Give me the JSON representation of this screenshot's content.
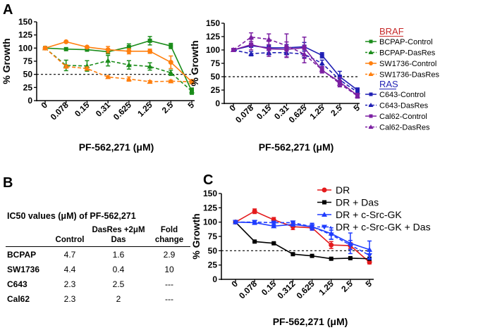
{
  "panels": {
    "A": "A",
    "B": "B",
    "C": "C"
  },
  "chart_data": [
    {
      "id": "A-left",
      "type": "line",
      "ylabel": "% Growth",
      "xlabel": "PF-562,271 (μM)",
      "categories": [
        "0",
        "0.078",
        "0.15",
        "0.31",
        "0.625",
        "1.25",
        "2.5",
        "5"
      ],
      "yticks": [
        0,
        25,
        50,
        75,
        100,
        125,
        150
      ],
      "ylim": [
        0,
        150
      ],
      "reference_line": 50,
      "series": [
        {
          "name": "BCPAP-Control",
          "color": "#1a8c1a",
          "dash": false,
          "marker": "square",
          "values": [
            100,
            98,
            97,
            93,
            102,
            114,
            104,
            18
          ],
          "err": [
            0,
            0,
            0,
            4,
            6,
            8,
            5,
            5
          ]
        },
        {
          "name": "BCPAP-DasRes",
          "color": "#1a8c1a",
          "dash": true,
          "marker": "triangle",
          "values": [
            100,
            67,
            66,
            76,
            68,
            65,
            53,
            18
          ],
          "err": [
            0,
            10,
            10,
            10,
            8,
            7,
            5,
            6
          ]
        },
        {
          "name": "SW1736-Control",
          "color": "#ff7f0e",
          "dash": false,
          "marker": "circle",
          "values": [
            100,
            112,
            102,
            97,
            94,
            94,
            73,
            36
          ],
          "err": [
            0,
            0,
            0,
            6,
            5,
            4,
            12,
            4
          ]
        },
        {
          "name": "SW1736-DasRes",
          "color": "#ff7f0e",
          "dash": true,
          "marker": "triangle",
          "values": [
            100,
            65,
            61,
            45,
            41,
            36,
            37,
            36
          ],
          "err": [
            0,
            3,
            3,
            2,
            4,
            2,
            2,
            2
          ]
        }
      ]
    },
    {
      "id": "A-right",
      "type": "line",
      "ylabel": "% Growth",
      "xlabel": "PF-562,271 (μM)",
      "categories": [
        "0",
        "0.078",
        "0.15",
        "0.31",
        "0.625",
        "1.25",
        "2.5",
        "5"
      ],
      "yticks": [
        0,
        25,
        50,
        75,
        100,
        125,
        150
      ],
      "ylim": [
        0,
        150
      ],
      "reference_line": 50,
      "series": [
        {
          "name": "C643-Control",
          "color": "#1f1fb4",
          "dash": false,
          "marker": "square",
          "values": [
            100,
            108,
            104,
            104,
            106,
            90,
            50,
            25
          ],
          "err": [
            0,
            3,
            5,
            6,
            8,
            5,
            10,
            4
          ]
        },
        {
          "name": "C643-DasRes",
          "color": "#1f1fb4",
          "dash": true,
          "marker": "triangle",
          "values": [
            100,
            93,
            95,
            95,
            92,
            75,
            44,
            21
          ],
          "err": [
            0,
            4,
            4,
            4,
            6,
            6,
            7,
            4
          ]
        },
        {
          "name": "Cal62-Control",
          "color": "#7b1fa2",
          "dash": false,
          "marker": "square",
          "values": [
            100,
            110,
            102,
            101,
            104,
            62,
            40,
            15
          ],
          "err": [
            0,
            10,
            14,
            14,
            20,
            5,
            8,
            4
          ]
        },
        {
          "name": "Cal62-DasRes",
          "color": "#7b1fa2",
          "dash": true,
          "marker": "triangle",
          "values": [
            100,
            124,
            120,
            108,
            92,
            63,
            37,
            14
          ],
          "err": [
            0,
            8,
            10,
            22,
            16,
            6,
            6,
            4
          ]
        }
      ]
    },
    {
      "id": "C",
      "type": "line",
      "ylabel": "% Growth",
      "xlabel": "PF-562,271 (μM)",
      "categories": [
        "0",
        "0.078",
        "0.15",
        "0.312",
        "0.625",
        "1.25",
        "2.5",
        "5"
      ],
      "yticks": [
        0,
        25,
        50,
        75,
        100,
        125,
        150
      ],
      "ylim": [
        0,
        150
      ],
      "reference_line": 50,
      "series": [
        {
          "name": "DR",
          "color": "#e41a1c",
          "dash": false,
          "marker": "circle",
          "values": [
            100,
            119,
            104,
            92,
            90,
            60,
            59,
            30
          ],
          "err": [
            0,
            4,
            4,
            5,
            4,
            6,
            5,
            3
          ]
        },
        {
          "name": "DR + Das",
          "color": "#000000",
          "dash": false,
          "marker": "square",
          "values": [
            100,
            66,
            63,
            44,
            41,
            36,
            37,
            36
          ],
          "err": [
            0,
            1,
            1,
            1,
            1,
            1,
            1,
            1
          ]
        },
        {
          "name": "DR + c-Src-GK",
          "color": "#1f3cff",
          "dash": false,
          "marker": "triangle",
          "values": [
            100,
            99,
            93,
            96,
            92,
            80,
            63,
            52
          ],
          "err": [
            0,
            3,
            2,
            3,
            5,
            10,
            18,
            15
          ]
        },
        {
          "name": "DR + c-Src-GK + Das",
          "color": "#1f3cff",
          "dash": true,
          "marker": "tri-down",
          "values": [
            100,
            100,
            99,
            99,
            92,
            78,
            60,
            42
          ],
          "err": [
            0,
            3,
            2,
            3,
            6,
            8,
            8,
            7
          ]
        }
      ]
    }
  ],
  "legend_groups": {
    "braf": "BRAF",
    "ras": "RAS"
  },
  "braf_color": "#c62828",
  "ras_color": "#1f1fb4",
  "table": {
    "title": "IC50 values (μM)  of PF-562,271",
    "headers": [
      "",
      "Control",
      "DasRes +2μM Das",
      "Fold change"
    ],
    "rows": [
      [
        "BCPAP",
        "4.7",
        "1.6",
        "2.9"
      ],
      [
        "SW1736",
        "4.4",
        "0.4",
        "10"
      ],
      [
        "C643",
        "2.3",
        "2.5",
        "---"
      ],
      [
        "Cal62",
        "2.3",
        "2",
        "---"
      ]
    ]
  }
}
